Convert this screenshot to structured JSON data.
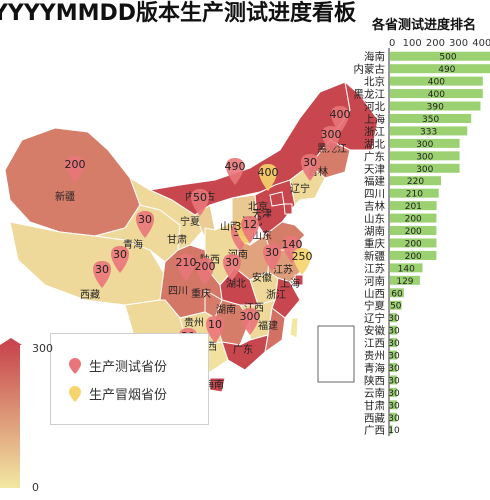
{
  "title": "YYYYMMDD版本生产测试进度看板",
  "rank_title": "各省测试进度排名",
  "legend": [
    {
      "label": "生产测试省份",
      "color": "#e9757a"
    },
    {
      "label": "生产冒烟省份",
      "color": "#f5d46b"
    }
  ],
  "visual_map": {
    "max_label": "300",
    "min_label": "0",
    "colors": [
      "#c8474e",
      "#f2e8a2"
    ]
  },
  "colors": {
    "bar": "#9bd171",
    "map_low": "#f2e8a2",
    "map_high": "#c8474e",
    "sea_border": "#666666"
  },
  "chart_data": [
    {
      "type": "bar",
      "orientation": "horizontal",
      "categories": [
        "海南",
        "内蒙古",
        "北京",
        "黑龙江",
        "河北",
        "上海",
        "浙江",
        "湖北",
        "广东",
        "天津",
        "福建",
        "四川",
        "吉林",
        "山东",
        "湖南",
        "重庆",
        "新疆",
        "江苏",
        "河南",
        "山西",
        "宁夏",
        "辽宁",
        "安徽",
        "江西",
        "贵州",
        "青海",
        "陕西",
        "云南",
        "甘肃",
        "西藏",
        "广西"
      ],
      "values": [
        500,
        490,
        400,
        400,
        390,
        350,
        333,
        300,
        300,
        300,
        220,
        210,
        201,
        200,
        200,
        200,
        200,
        140,
        129,
        60,
        50,
        30,
        30,
        30,
        30,
        30,
        30,
        30,
        30,
        30,
        10
      ],
      "axis_ticks": [
        "0",
        "100",
        "200",
        "300",
        "400"
      ],
      "xlim": [
        0,
        500
      ]
    },
    {
      "type": "map",
      "regions": [
        {
          "name": "新疆",
          "value": 200
        },
        {
          "name": "西藏",
          "value": 30
        },
        {
          "name": "青海",
          "value": 30
        },
        {
          "name": "甘肃",
          "value": 30
        },
        {
          "name": "内蒙古",
          "value": 490
        },
        {
          "name": "宁夏",
          "value": 50
        },
        {
          "name": "陕西",
          "value": 30
        },
        {
          "name": "山西",
          "value": 60
        },
        {
          "name": "河北",
          "value": 390
        },
        {
          "name": "北京",
          "value": 400
        },
        {
          "name": "天津",
          "value": 300
        },
        {
          "name": "辽宁",
          "value": 30
        },
        {
          "name": "吉林",
          "value": 201
        },
        {
          "name": "黑龙江",
          "value": 400
        },
        {
          "name": "山东",
          "value": 200
        },
        {
          "name": "河南",
          "value": 129
        },
        {
          "name": "江苏",
          "value": 140
        },
        {
          "name": "安徽",
          "value": 30
        },
        {
          "name": "上海",
          "value": 350
        },
        {
          "name": "浙江",
          "value": 333
        },
        {
          "name": "湖北",
          "value": 300
        },
        {
          "name": "四川",
          "value": 210
        },
        {
          "name": "重庆",
          "value": 200
        },
        {
          "name": "湖南",
          "value": 200
        },
        {
          "name": "江西",
          "value": 30
        },
        {
          "name": "福建",
          "value": 220
        },
        {
          "name": "贵州",
          "value": 30
        },
        {
          "name": "云南",
          "value": 30
        },
        {
          "name": "广西",
          "value": 10
        },
        {
          "name": "广东",
          "value": 300
        },
        {
          "name": "海南",
          "value": 500
        }
      ],
      "pin_values": [
        "400",
        "200",
        "30",
        "30",
        "490",
        "400",
        "50",
        "30",
        "300",
        "30",
        "210",
        "200",
        "30",
        "140",
        "250",
        "300",
        "10",
        "30",
        "30",
        "30",
        "300",
        "12"
      ]
    }
  ]
}
